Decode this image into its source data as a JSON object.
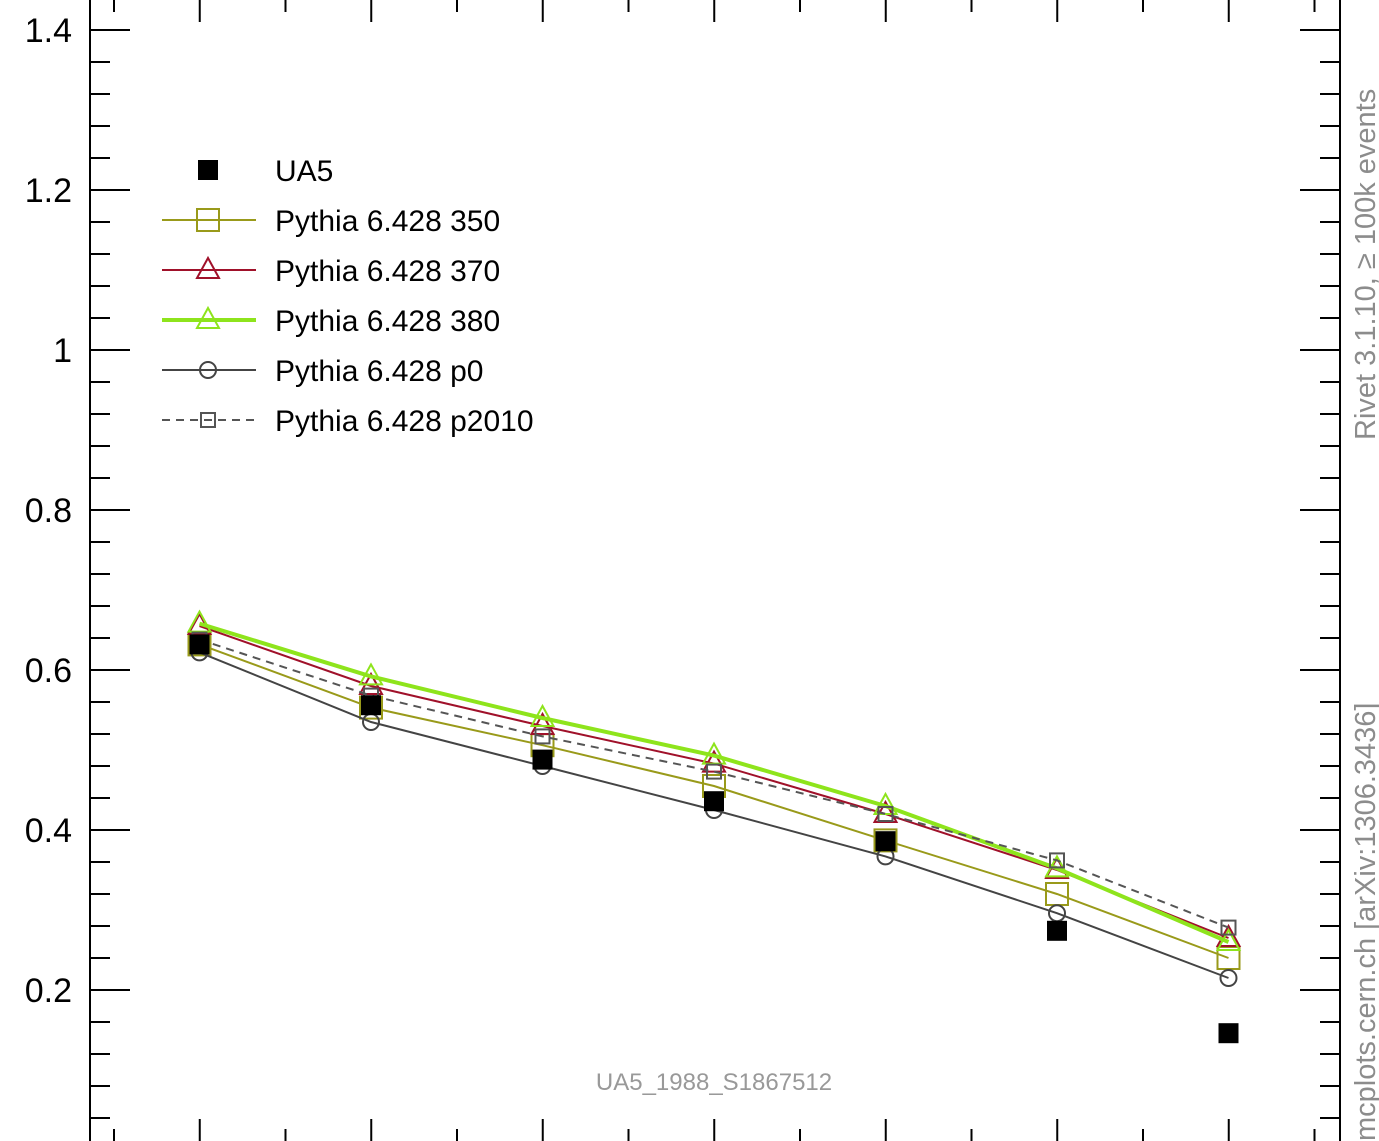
{
  "chart_data": {
    "type": "line",
    "title": "",
    "xlabel": "",
    "ylabel": "",
    "ylim": [
      0,
      1.4
    ],
    "yticks": [
      0.2,
      0.4,
      0.6,
      0.8,
      1,
      1.2,
      1.4
    ],
    "ytick_labels": [
      "0.2",
      "0.4",
      "0.6",
      "0.8",
      "1",
      "1.2",
      "1.4"
    ],
    "x": [
      1,
      2,
      3,
      4,
      5,
      6,
      7
    ],
    "legend_position": "top-left",
    "series": [
      {
        "name": "UA5",
        "style": "data",
        "marker": "filled-square",
        "color": "#000000",
        "values": [
          0.632,
          0.556,
          0.488,
          0.436,
          0.386,
          0.274,
          0.146
        ]
      },
      {
        "name": "Pythia 6.428 350",
        "style": "solid",
        "marker": "open-square",
        "color": "#999a1a",
        "values": [
          0.632,
          0.553,
          0.506,
          0.455,
          0.387,
          0.32,
          0.24
        ]
      },
      {
        "name": "Pythia 6.428 370",
        "style": "solid",
        "marker": "open-triangle",
        "color": "#a0112a",
        "values": [
          0.655,
          0.58,
          0.53,
          0.483,
          0.42,
          0.35,
          0.265
        ]
      },
      {
        "name": "Pythia 6.428 380",
        "style": "solid-thick",
        "marker": "open-triangle",
        "color": "#8ee41c",
        "values": [
          0.658,
          0.592,
          0.54,
          0.493,
          0.43,
          0.352,
          0.26
        ]
      },
      {
        "name": "Pythia 6.428 p0",
        "style": "solid",
        "marker": "open-circle",
        "color": "#444444",
        "values": [
          0.622,
          0.535,
          0.48,
          0.425,
          0.367,
          0.296,
          0.215
        ]
      },
      {
        "name": "Pythia 6.428 p2010",
        "style": "dashed",
        "marker": "open-square-small",
        "color": "#555555",
        "values": [
          0.638,
          0.568,
          0.517,
          0.473,
          0.42,
          0.362,
          0.278
        ]
      }
    ],
    "annotations": {
      "analysis_id": "UA5_1988_S1867512",
      "side_top": "Rivet 3.1.10, ≥ 100k events",
      "side_bottom": "mcplots.cern.ch [arXiv:1306.3436]"
    }
  }
}
